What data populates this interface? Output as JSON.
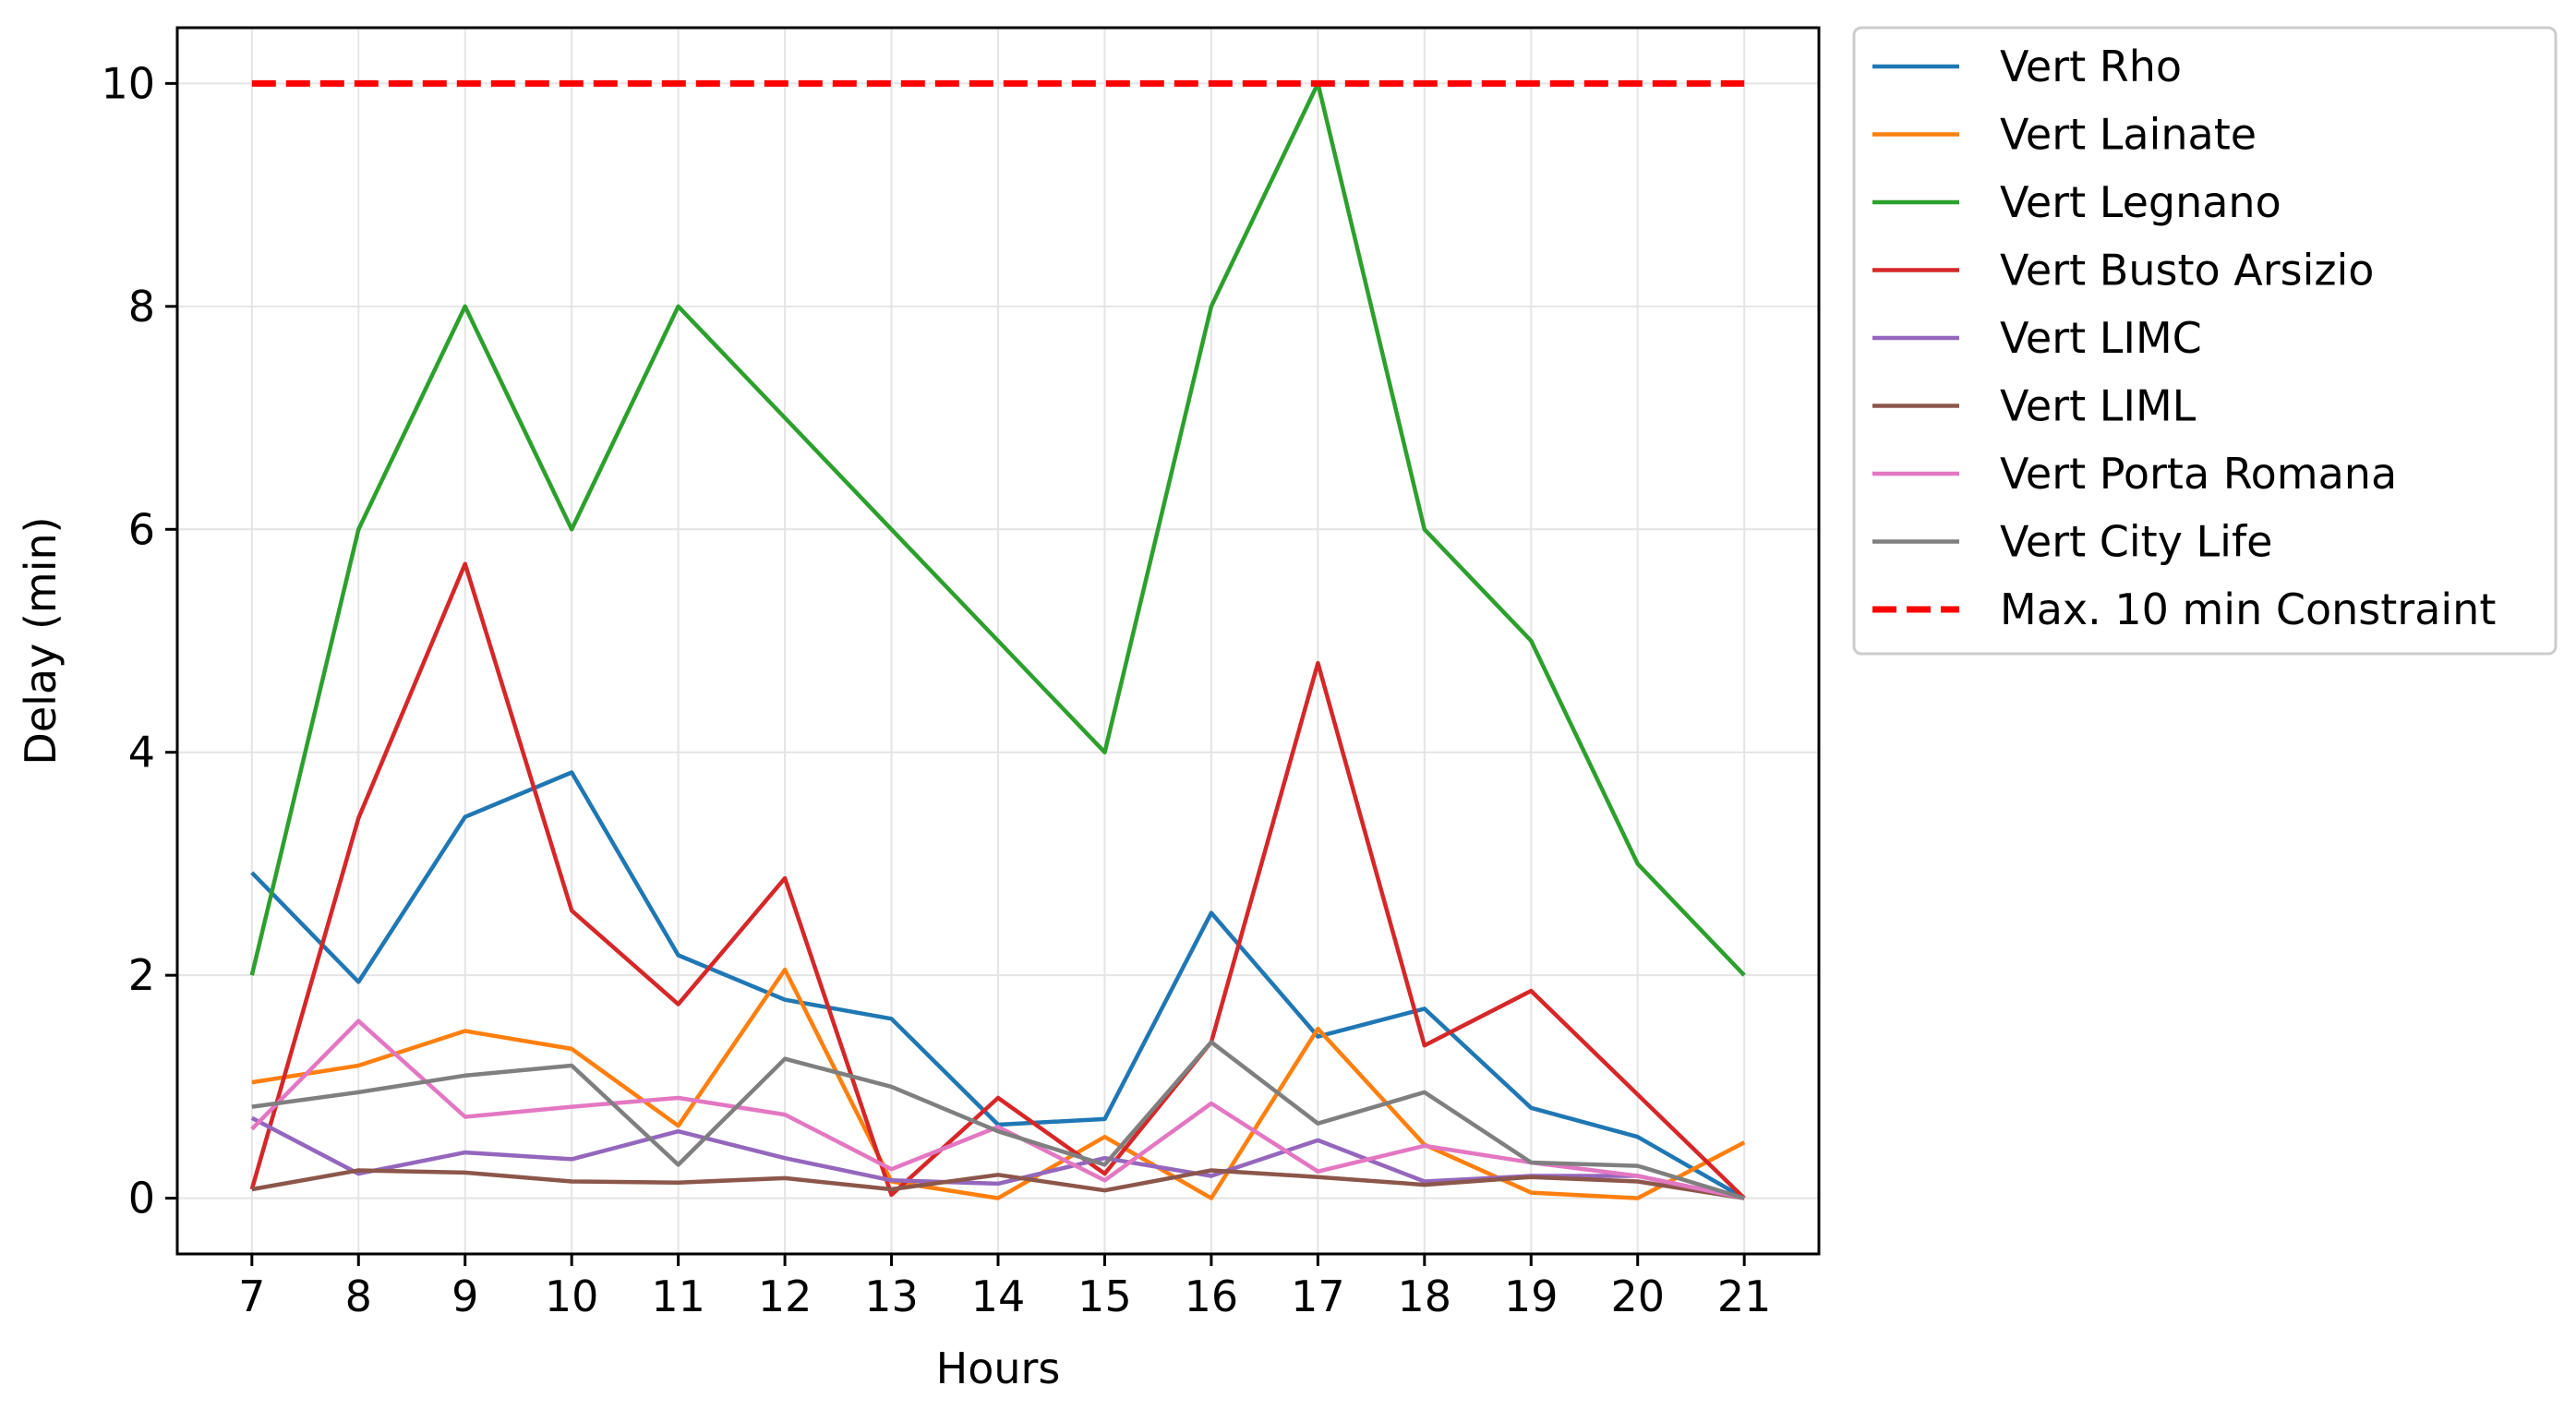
{
  "chart_data": {
    "type": "line",
    "xlabel": "Hours",
    "ylabel": "Delay (min)",
    "x": [
      7,
      8,
      9,
      10,
      11,
      12,
      13,
      14,
      15,
      16,
      17,
      18,
      19,
      20,
      21
    ],
    "xticks": [
      "7",
      "8",
      "9",
      "10",
      "11",
      "12",
      "13",
      "14",
      "15",
      "16",
      "17",
      "18",
      "19",
      "20",
      "21"
    ],
    "yticks": [
      "0",
      "2",
      "4",
      "6",
      "8",
      "10"
    ],
    "xlim": [
      6.3,
      21.7
    ],
    "ylim": [
      -0.5,
      10.5
    ],
    "grid": true,
    "legend_position": "outside top-right",
    "series": [
      {
        "name": "Vert Rho",
        "color": "#1f77b4",
        "values": [
          2.92,
          1.94,
          3.42,
          3.82,
          2.18,
          1.78,
          1.61,
          0.66,
          0.71,
          2.56,
          1.45,
          1.7,
          0.81,
          0.55,
          0.0
        ]
      },
      {
        "name": "Vert Lainate",
        "color": "#ff7f0e",
        "values": [
          1.04,
          1.19,
          1.5,
          1.34,
          0.65,
          2.05,
          0.15,
          0.0,
          0.55,
          0.0,
          1.52,
          0.48,
          0.05,
          0.0,
          0.5
        ]
      },
      {
        "name": "Vert Legnano",
        "color": "#2ca02c",
        "values": [
          2,
          6,
          8,
          6,
          8,
          7,
          6,
          5,
          4,
          8,
          10,
          6,
          5,
          3,
          2
        ]
      },
      {
        "name": "Vert Busto Arsizio",
        "color": "#d62728",
        "values": [
          0.08,
          3.41,
          5.69,
          2.58,
          1.74,
          2.87,
          0.03,
          0.9,
          0.22,
          1.4,
          4.8,
          1.37,
          1.86,
          0.93,
          0.0
        ]
      },
      {
        "name": "Vert LIMC",
        "color": "#9467bd",
        "values": [
          0.72,
          0.22,
          0.41,
          0.35,
          0.6,
          0.36,
          0.16,
          0.13,
          0.36,
          0.2,
          0.52,
          0.15,
          0.2,
          0.2,
          0.0
        ]
      },
      {
        "name": "Vert LIML",
        "color": "#8c564b",
        "values": [
          0.08,
          0.25,
          0.23,
          0.15,
          0.14,
          0.18,
          0.08,
          0.21,
          0.07,
          0.25,
          0.19,
          0.12,
          0.19,
          0.15,
          0.0
        ]
      },
      {
        "name": "Vert Porta Romana",
        "color": "#e377c2",
        "values": [
          0.62,
          1.59,
          0.73,
          0.82,
          0.9,
          0.75,
          0.26,
          0.64,
          0.16,
          0.85,
          0.24,
          0.47,
          0.32,
          0.2,
          0.0
        ]
      },
      {
        "name": "Vert City Life",
        "color": "#7f7f7f",
        "values": [
          0.82,
          0.95,
          1.1,
          1.19,
          0.3,
          1.25,
          1.0,
          0.6,
          0.3,
          1.4,
          0.67,
          0.95,
          0.32,
          0.29,
          0.0
        ]
      },
      {
        "name": "Max. 10 min Constraint",
        "color": "#ff0000",
        "dashed": true,
        "values": [
          10,
          10,
          10,
          10,
          10,
          10,
          10,
          10,
          10,
          10,
          10,
          10,
          10,
          10,
          10
        ]
      }
    ]
  }
}
